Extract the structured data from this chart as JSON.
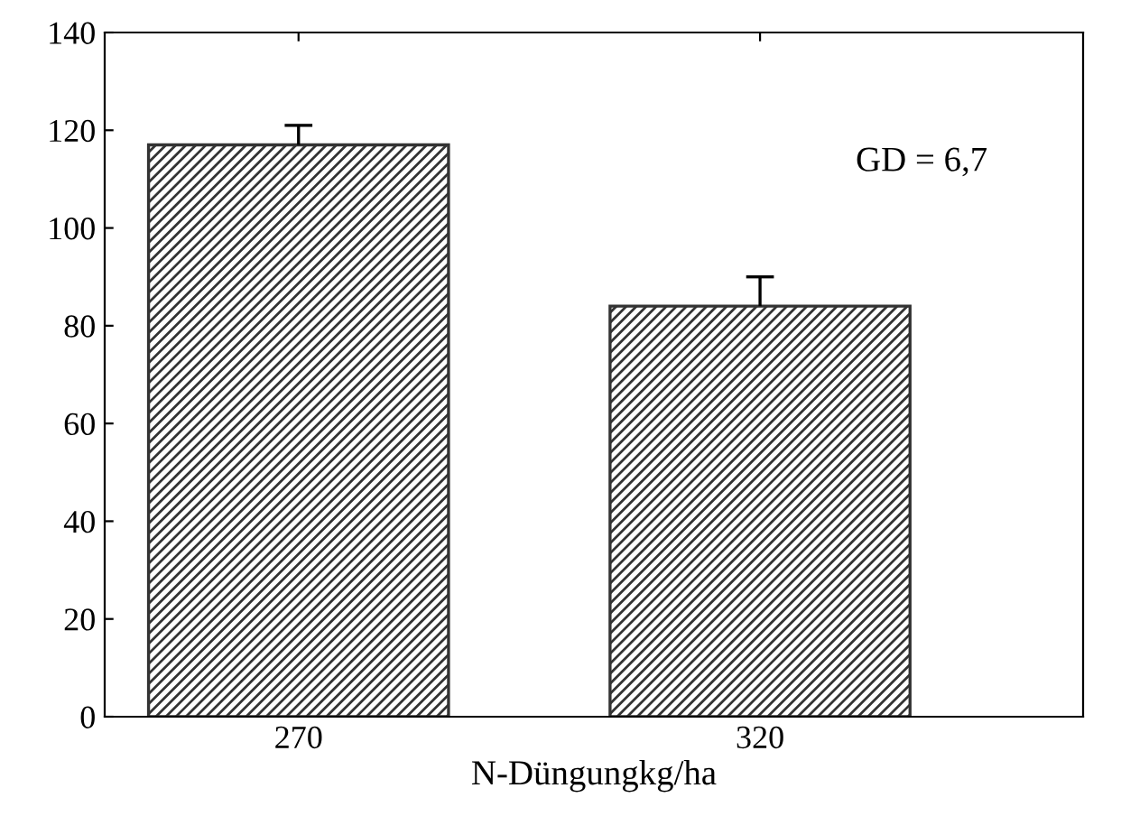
{
  "chart_data": {
    "type": "bar",
    "xlabel": "N-Düngungkg/ha",
    "categories": [
      "270",
      "320"
    ],
    "values": [
      117,
      84
    ],
    "color": "#333333",
    "errors": [
      [
        117,
        121
      ],
      [
        84,
        90
      ]
    ],
    "ylim": [
      0,
      140
    ],
    "yticks": [
      0,
      20,
      40,
      60,
      80,
      100,
      120,
      140
    ],
    "grid": false,
    "legend": false,
    "annotations": [
      "GD = 6,7"
    ]
  }
}
